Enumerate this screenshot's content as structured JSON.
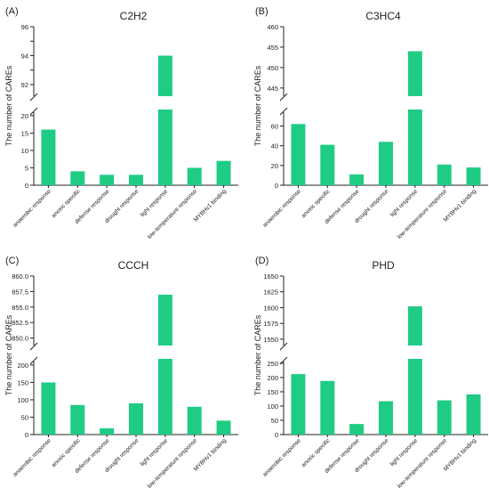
{
  "colors": {
    "bar": "#1fcc84",
    "axis": "#222222"
  },
  "chart_data": [
    {
      "panel_label": "(A)",
      "title": "C2H2",
      "type": "bar",
      "ylabel": "The number of CAREs",
      "categories": [
        "anaerobic response",
        "anoxic specific",
        "defense response",
        "drought response",
        "light response",
        "low-temperature response",
        "MYBHv1 binding"
      ],
      "values": [
        16,
        4,
        3,
        3,
        94,
        5,
        7
      ],
      "broken_axis": true,
      "lower_range": [
        0,
        21
      ],
      "lower_ticks": [
        0,
        5,
        10,
        15,
        20
      ],
      "upper_range": [
        91.2,
        96
      ],
      "upper_ticks": [
        92,
        93,
        94,
        95,
        96
      ],
      "upper_tick_labels": [
        "92",
        "",
        "94",
        "",
        "96"
      ],
      "grid": false
    },
    {
      "panel_label": "(B)",
      "title": "C3HC4",
      "type": "bar",
      "ylabel": "The number of CAREs",
      "categories": [
        "anaerobic response",
        "anoxic specific",
        "defense response",
        "drought response",
        "light response",
        "low-temperature response",
        "MYBHv1 binding"
      ],
      "values": [
        62,
        41,
        11,
        44,
        454,
        21,
        18
      ],
      "broken_axis": true,
      "lower_range": [
        0,
        74
      ],
      "lower_ticks": [
        0,
        20,
        40,
        60
      ],
      "upper_range": [
        443,
        460
      ],
      "upper_ticks": [
        445,
        450,
        455,
        460
      ],
      "upper_tick_labels": [
        "445",
        "450",
        "455",
        "460"
      ],
      "grid": false
    },
    {
      "panel_label": "(C)",
      "title": "CCCH",
      "type": "bar",
      "ylabel": "The number of CAREs",
      "categories": [
        "anaerobic response",
        "anoxic specific",
        "defense response",
        "drought response",
        "light response",
        "low-temperature response",
        "MYBHv1 binding"
      ],
      "values": [
        150,
        85,
        18,
        90,
        857,
        80,
        40
      ],
      "broken_axis": true,
      "lower_range": [
        0,
        210
      ],
      "lower_ticks": [
        0,
        50,
        100,
        150,
        200
      ],
      "upper_range": [
        848.8,
        860
      ],
      "upper_ticks": [
        850.0,
        852.5,
        855.0,
        857.5,
        860.0
      ],
      "upper_tick_labels": [
        "850.0",
        "852.5",
        "855.0",
        "857.5",
        "860.0"
      ],
      "grid": false
    },
    {
      "panel_label": "(D)",
      "title": "PHD",
      "type": "bar",
      "ylabel": "The number of CAREs",
      "categories": [
        "anaerobic response",
        "anoxic specific",
        "defense response",
        "drought response",
        "light response",
        "low-temperature response",
        "MYBHv1 binding"
      ],
      "values": [
        212,
        188,
        37,
        117,
        1602,
        120,
        141
      ],
      "broken_axis": true,
      "lower_range": [
        0,
        256
      ],
      "lower_ticks": [
        0,
        50,
        100,
        150,
        200,
        250
      ],
      "upper_range": [
        1540,
        1650
      ],
      "upper_ticks": [
        1550,
        1575,
        1600,
        1625,
        1650
      ],
      "upper_tick_labels": [
        "1550",
        "1575",
        "1600",
        "1625",
        "1650"
      ],
      "grid": false
    }
  ]
}
